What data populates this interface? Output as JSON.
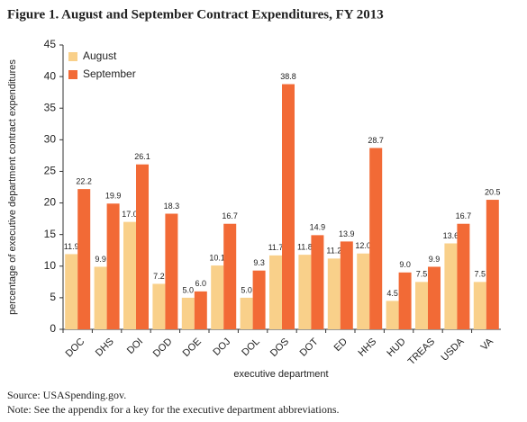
{
  "chart_data": {
    "type": "bar",
    "title": "Figure 1. August and September Contract Expenditures, FY 2013",
    "x_label": "executive department",
    "y_label": "percentage of executive department contract expenditures",
    "categories": [
      "DOC",
      "DHS",
      "DOI",
      "DOD",
      "DOE",
      "DOJ",
      "DOL",
      "DOS",
      "DOT",
      "ED",
      "HHS",
      "HUD",
      "TREAS",
      "USDA",
      "VA"
    ],
    "series": [
      {
        "name": "August",
        "color": "#f9d08a",
        "values": [
          11.9,
          9.9,
          17.0,
          7.2,
          5.0,
          10.1,
          5.0,
          11.7,
          11.8,
          11.2,
          12.0,
          4.5,
          7.5,
          13.6,
          7.5
        ],
        "value_labels": [
          "11.9",
          "9.9",
          "17.0",
          "7.2",
          "5.0",
          "10.1",
          "5.0",
          "11.7",
          "11.8",
          "11.2",
          "12.0",
          "4.5",
          "7.5",
          "13.6",
          "7.5"
        ]
      },
      {
        "name": "September",
        "color": "#f26a36",
        "values": [
          22.2,
          19.9,
          26.1,
          18.3,
          6.0,
          16.7,
          9.3,
          38.8,
          14.9,
          13.9,
          28.7,
          9.0,
          9.9,
          16.7,
          20.5
        ],
        "value_labels": [
          "22.2",
          "19.9",
          "26.1",
          "18.3",
          "6.0",
          "16.7",
          "9.3",
          "38.8",
          "14.9",
          "13.9",
          "28.7",
          "9.0",
          "9.9",
          "16.7",
          "20.5"
        ]
      }
    ],
    "ylim": [
      0,
      45
    ],
    "yticks": [
      0,
      5,
      10,
      15,
      20,
      25,
      30,
      35,
      40,
      45
    ],
    "grid": false,
    "legend": "upper left",
    "notes": [
      "Source: USASpending.gov.",
      "Note: See the appendix for a key for the executive department abbreviations."
    ]
  }
}
